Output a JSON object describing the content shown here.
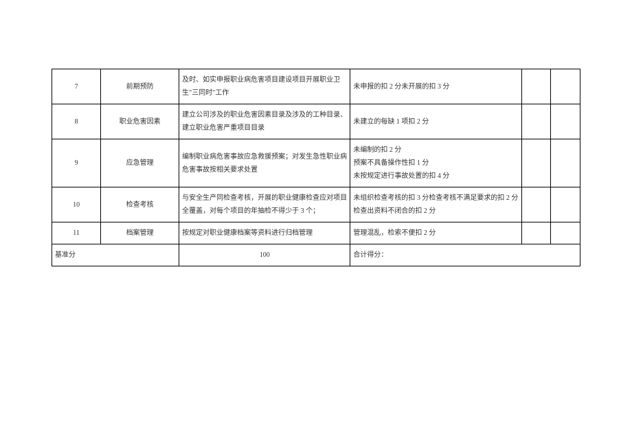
{
  "table": {
    "rows": [
      {
        "num": "7",
        "name": "前期预防",
        "desc": "及时、如实申报职业病危害项目建设项目开展职业卫生\"三同时\"工作",
        "score": "未申报的扣 2 分未开展的扣 3 分"
      },
      {
        "num": "8",
        "name": "职业危害因素",
        "desc": "建立公司涉及的职业危害因素目录及涉及的工种目录、建立职业危害严重项目目录",
        "score": "未建立的每缺 1 项扣 2 分"
      },
      {
        "num": "9",
        "name": "应急管理",
        "desc": "编制职业病危害事故应急救援预案；对发生急性职业病危害事故按相关要求处置",
        "score": "未编制的扣 2 分\n预案不具备操作性扣 1 分\n未按规定进行事故处置的扣 4 分"
      },
      {
        "num": "10",
        "name": "检查考核",
        "desc": "与安全生产同检查考核，开展的职业健康检查应对项目全覆盖，对每个项目的年抽检不得少于 3 个；",
        "score": "未组织检查考核的扣 3 分检查考核不满足要求的扣 2 分检查出资料不闭合的扣 2 分"
      },
      {
        "num": "11",
        "name": "档案管理",
        "desc": "按规定对职业健康档案等资料进行归档管理",
        "score": "管理混乱，检索不便扣 2 分"
      }
    ],
    "footer": {
      "label": "基准分",
      "value": "100",
      "total_label": "合计得分："
    }
  }
}
